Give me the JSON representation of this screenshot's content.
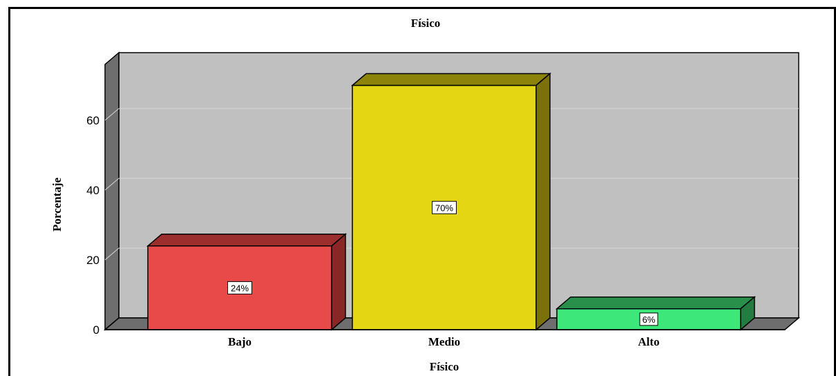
{
  "chart_data": {
    "type": "bar",
    "title": "Físico",
    "xlabel": "Físico",
    "ylabel": "Porcentaje",
    "categories": [
      "Bajo",
      "Medio",
      "Alto"
    ],
    "values": [
      24,
      70,
      6
    ],
    "data_labels": [
      "24%",
      "70%",
      "6%"
    ],
    "yticks": [
      0,
      20,
      40,
      60
    ],
    "ylim": [
      0,
      76
    ],
    "grid": true,
    "legend": "none",
    "colors": {
      "bars": [
        "#e84a4a",
        "#e3d612",
        "#3de87a"
      ],
      "bar_tops": [
        "#9c2e2e",
        "#8c830a",
        "#28904a"
      ],
      "bar_sides": [
        "#8a2626",
        "#7a7208",
        "#237d40"
      ],
      "wall": "#c0c0c0",
      "wall_side": "#6e6e6e",
      "floor": "#6e6e6e",
      "gridline": "#d8d8d8"
    }
  }
}
